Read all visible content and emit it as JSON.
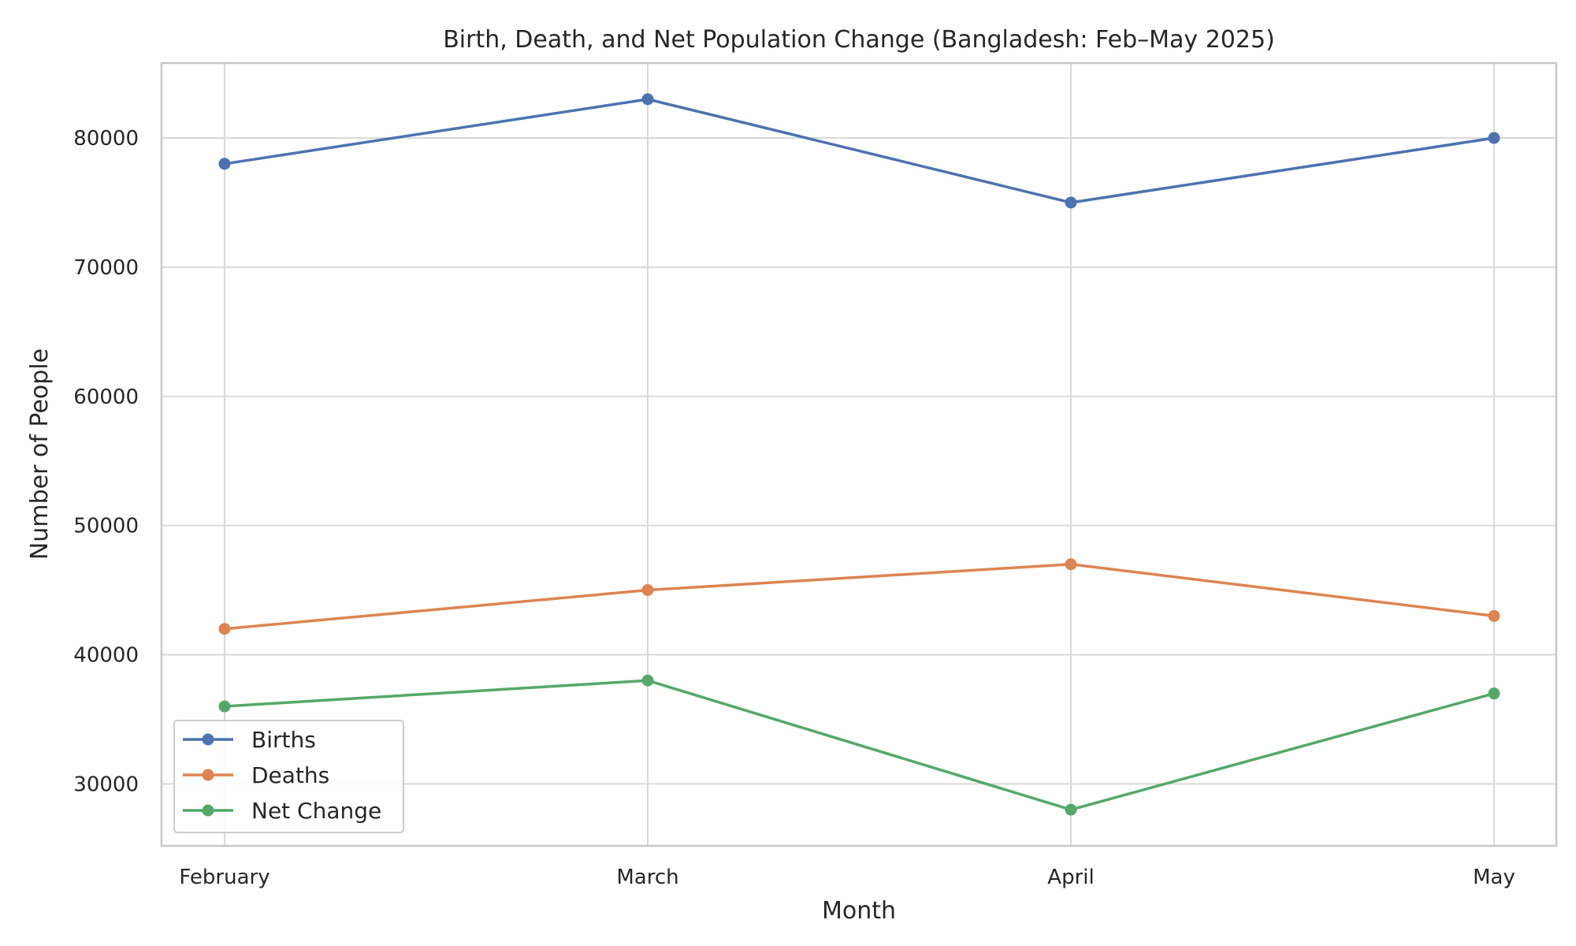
{
  "chart_data": {
    "type": "line",
    "title": "Birth, Death, and Net Population Change (Bangladesh: Feb–May 2025)",
    "xlabel": "Month",
    "ylabel": "Number of People",
    "categories": [
      "February",
      "March",
      "April",
      "May"
    ],
    "ylim": [
      25200,
      85800
    ],
    "yticks": [
      30000,
      40000,
      50000,
      60000,
      70000,
      80000
    ],
    "grid": true,
    "legend_position": "lower-left",
    "series": [
      {
        "name": "Births",
        "color": "#4c72b0",
        "values": [
          78000,
          83000,
          75000,
          80000
        ]
      },
      {
        "name": "Deaths",
        "color": "#dd8452",
        "values": [
          42000,
          45000,
          47000,
          43000
        ]
      },
      {
        "name": "Net Change",
        "color": "#55a868",
        "values": [
          36000,
          38000,
          28000,
          37000
        ]
      }
    ]
  }
}
